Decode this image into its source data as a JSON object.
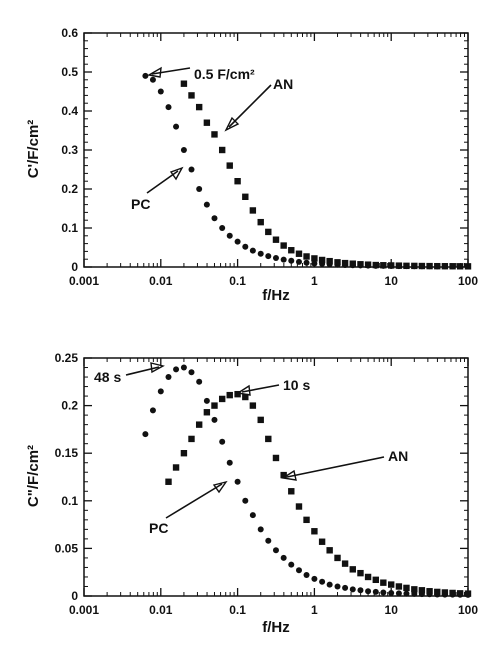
{
  "chart_data": [
    {
      "type": "scatter",
      "xscale": "log",
      "xlim": [
        0.001,
        100
      ],
      "ylim": [
        0,
        0.6
      ],
      "xticks": [
        "0.001",
        "0.01",
        "0.1",
        "1",
        "10",
        "100"
      ],
      "yticks": [
        "0",
        "0.1",
        "0.2",
        "0.3",
        "0.4",
        "0.5",
        "0.6"
      ],
      "xlabel": "f/Hz",
      "ylabel": "C'/F/cm²",
      "grid": false,
      "series": [
        {
          "name": "PC",
          "marker": "circle",
          "x": [
            0.0063,
            0.0079,
            0.01,
            0.0126,
            0.0158,
            0.02,
            0.0251,
            0.0316,
            0.0398,
            0.05,
            0.063,
            0.079,
            0.1,
            0.126,
            0.158,
            0.2,
            0.251,
            0.316,
            0.398,
            0.5,
            0.63,
            0.79,
            1,
            1.26,
            1.58,
            2,
            2.51,
            3.16,
            3.98,
            5,
            6.3,
            7.9,
            10,
            12.6,
            15.8,
            20,
            25.1,
            31.6,
            39.8,
            50,
            63,
            79,
            100
          ],
          "y": [
            0.49,
            0.48,
            0.45,
            0.41,
            0.36,
            0.3,
            0.25,
            0.2,
            0.16,
            0.125,
            0.1,
            0.08,
            0.065,
            0.052,
            0.042,
            0.034,
            0.028,
            0.023,
            0.019,
            0.016,
            0.013,
            0.011,
            0.009,
            0.008,
            0.007,
            0.006,
            0.005,
            0.0045,
            0.004,
            0.0035,
            0.003,
            0.0028,
            0.0025,
            0.0023,
            0.0021,
            0.002,
            0.0019,
            0.0018,
            0.0017,
            0.0016,
            0.0015,
            0.0015,
            0.0014
          ]
        },
        {
          "name": "AN",
          "marker": "square",
          "x": [
            0.02,
            0.0251,
            0.0316,
            0.0398,
            0.05,
            0.063,
            0.079,
            0.1,
            0.126,
            0.158,
            0.2,
            0.251,
            0.316,
            0.398,
            0.5,
            0.63,
            0.79,
            1,
            1.26,
            1.58,
            2,
            2.51,
            3.16,
            3.98,
            5,
            6.3,
            7.9,
            10,
            12.6,
            15.8,
            20,
            25.1,
            31.6,
            39.8,
            50,
            63,
            79,
            100
          ],
          "y": [
            0.47,
            0.44,
            0.41,
            0.37,
            0.34,
            0.3,
            0.26,
            0.22,
            0.18,
            0.145,
            0.115,
            0.09,
            0.07,
            0.055,
            0.043,
            0.034,
            0.027,
            0.022,
            0.018,
            0.015,
            0.012,
            0.01,
            0.0085,
            0.007,
            0.006,
            0.005,
            0.0045,
            0.004,
            0.0035,
            0.003,
            0.0028,
            0.0025,
            0.0023,
            0.0021,
            0.002,
            0.0019,
            0.0018,
            0.0017
          ]
        }
      ],
      "annotations": [
        {
          "text": "0.5 F/cm²",
          "x": 0.007,
          "y": 0.49
        },
        {
          "text": "AN",
          "x": 0.065,
          "y": 0.34
        },
        {
          "text": "PC",
          "x": 0.02,
          "y": 0.25
        }
      ]
    },
    {
      "type": "scatter",
      "xscale": "log",
      "xlim": [
        0.001,
        100
      ],
      "ylim": [
        0,
        0.25
      ],
      "xticks": [
        "0.001",
        "0.01",
        "0.1",
        "1",
        "10",
        "100"
      ],
      "yticks": [
        "0",
        "0.05",
        "0.1",
        "0.15",
        "0.2",
        "0.25"
      ],
      "xlabel": "f/Hz",
      "ylabel": "C\"/F/cm²",
      "grid": false,
      "series": [
        {
          "name": "PC",
          "marker": "circle",
          "x": [
            0.0063,
            0.0079,
            0.01,
            0.0126,
            0.0158,
            0.02,
            0.0251,
            0.0316,
            0.0398,
            0.05,
            0.063,
            0.079,
            0.1,
            0.126,
            0.158,
            0.2,
            0.251,
            0.316,
            0.398,
            0.5,
            0.63,
            0.79,
            1,
            1.26,
            1.58,
            2,
            2.51,
            3.16,
            3.98,
            5,
            6.3,
            7.9,
            10,
            12.6,
            15.8,
            20,
            25.1,
            31.6,
            39.8,
            50,
            63,
            79,
            100
          ],
          "y": [
            0.17,
            0.195,
            0.215,
            0.23,
            0.238,
            0.24,
            0.235,
            0.225,
            0.205,
            0.185,
            0.162,
            0.14,
            0.12,
            0.1,
            0.085,
            0.07,
            0.058,
            0.048,
            0.04,
            0.033,
            0.027,
            0.022,
            0.018,
            0.015,
            0.012,
            0.01,
            0.0085,
            0.007,
            0.006,
            0.005,
            0.0043,
            0.0037,
            0.0032,
            0.0028,
            0.0025,
            0.0022,
            0.002,
            0.0018,
            0.0016,
            0.0015,
            0.0014,
            0.0013,
            0.0012
          ]
        },
        {
          "name": "AN",
          "marker": "square",
          "x": [
            0.0126,
            0.0158,
            0.02,
            0.0251,
            0.0316,
            0.0398,
            0.05,
            0.063,
            0.079,
            0.1,
            0.126,
            0.158,
            0.2,
            0.251,
            0.316,
            0.398,
            0.5,
            0.63,
            0.79,
            1,
            1.26,
            1.58,
            2,
            2.51,
            3.16,
            3.98,
            5,
            6.3,
            7.9,
            10,
            12.6,
            15.8,
            20,
            25.1,
            31.6,
            39.8,
            50,
            63,
            79,
            100
          ],
          "y": [
            0.12,
            0.135,
            0.15,
            0.165,
            0.18,
            0.193,
            0.2,
            0.207,
            0.211,
            0.212,
            0.209,
            0.2,
            0.185,
            0.165,
            0.145,
            0.127,
            0.11,
            0.094,
            0.08,
            0.068,
            0.057,
            0.048,
            0.04,
            0.034,
            0.028,
            0.024,
            0.02,
            0.017,
            0.014,
            0.012,
            0.01,
            0.0085,
            0.007,
            0.006,
            0.005,
            0.0043,
            0.0037,
            0.0032,
            0.0028,
            0.0025
          ]
        }
      ],
      "annotations": [
        {
          "text": "48 s",
          "x": 0.02,
          "y": 0.24
        },
        {
          "text": "10 s",
          "x": 0.1,
          "y": 0.212
        },
        {
          "text": "AN",
          "x": 0.4,
          "y": 0.125
        },
        {
          "text": "PC",
          "x": 0.09,
          "y": 0.115
        }
      ]
    }
  ]
}
